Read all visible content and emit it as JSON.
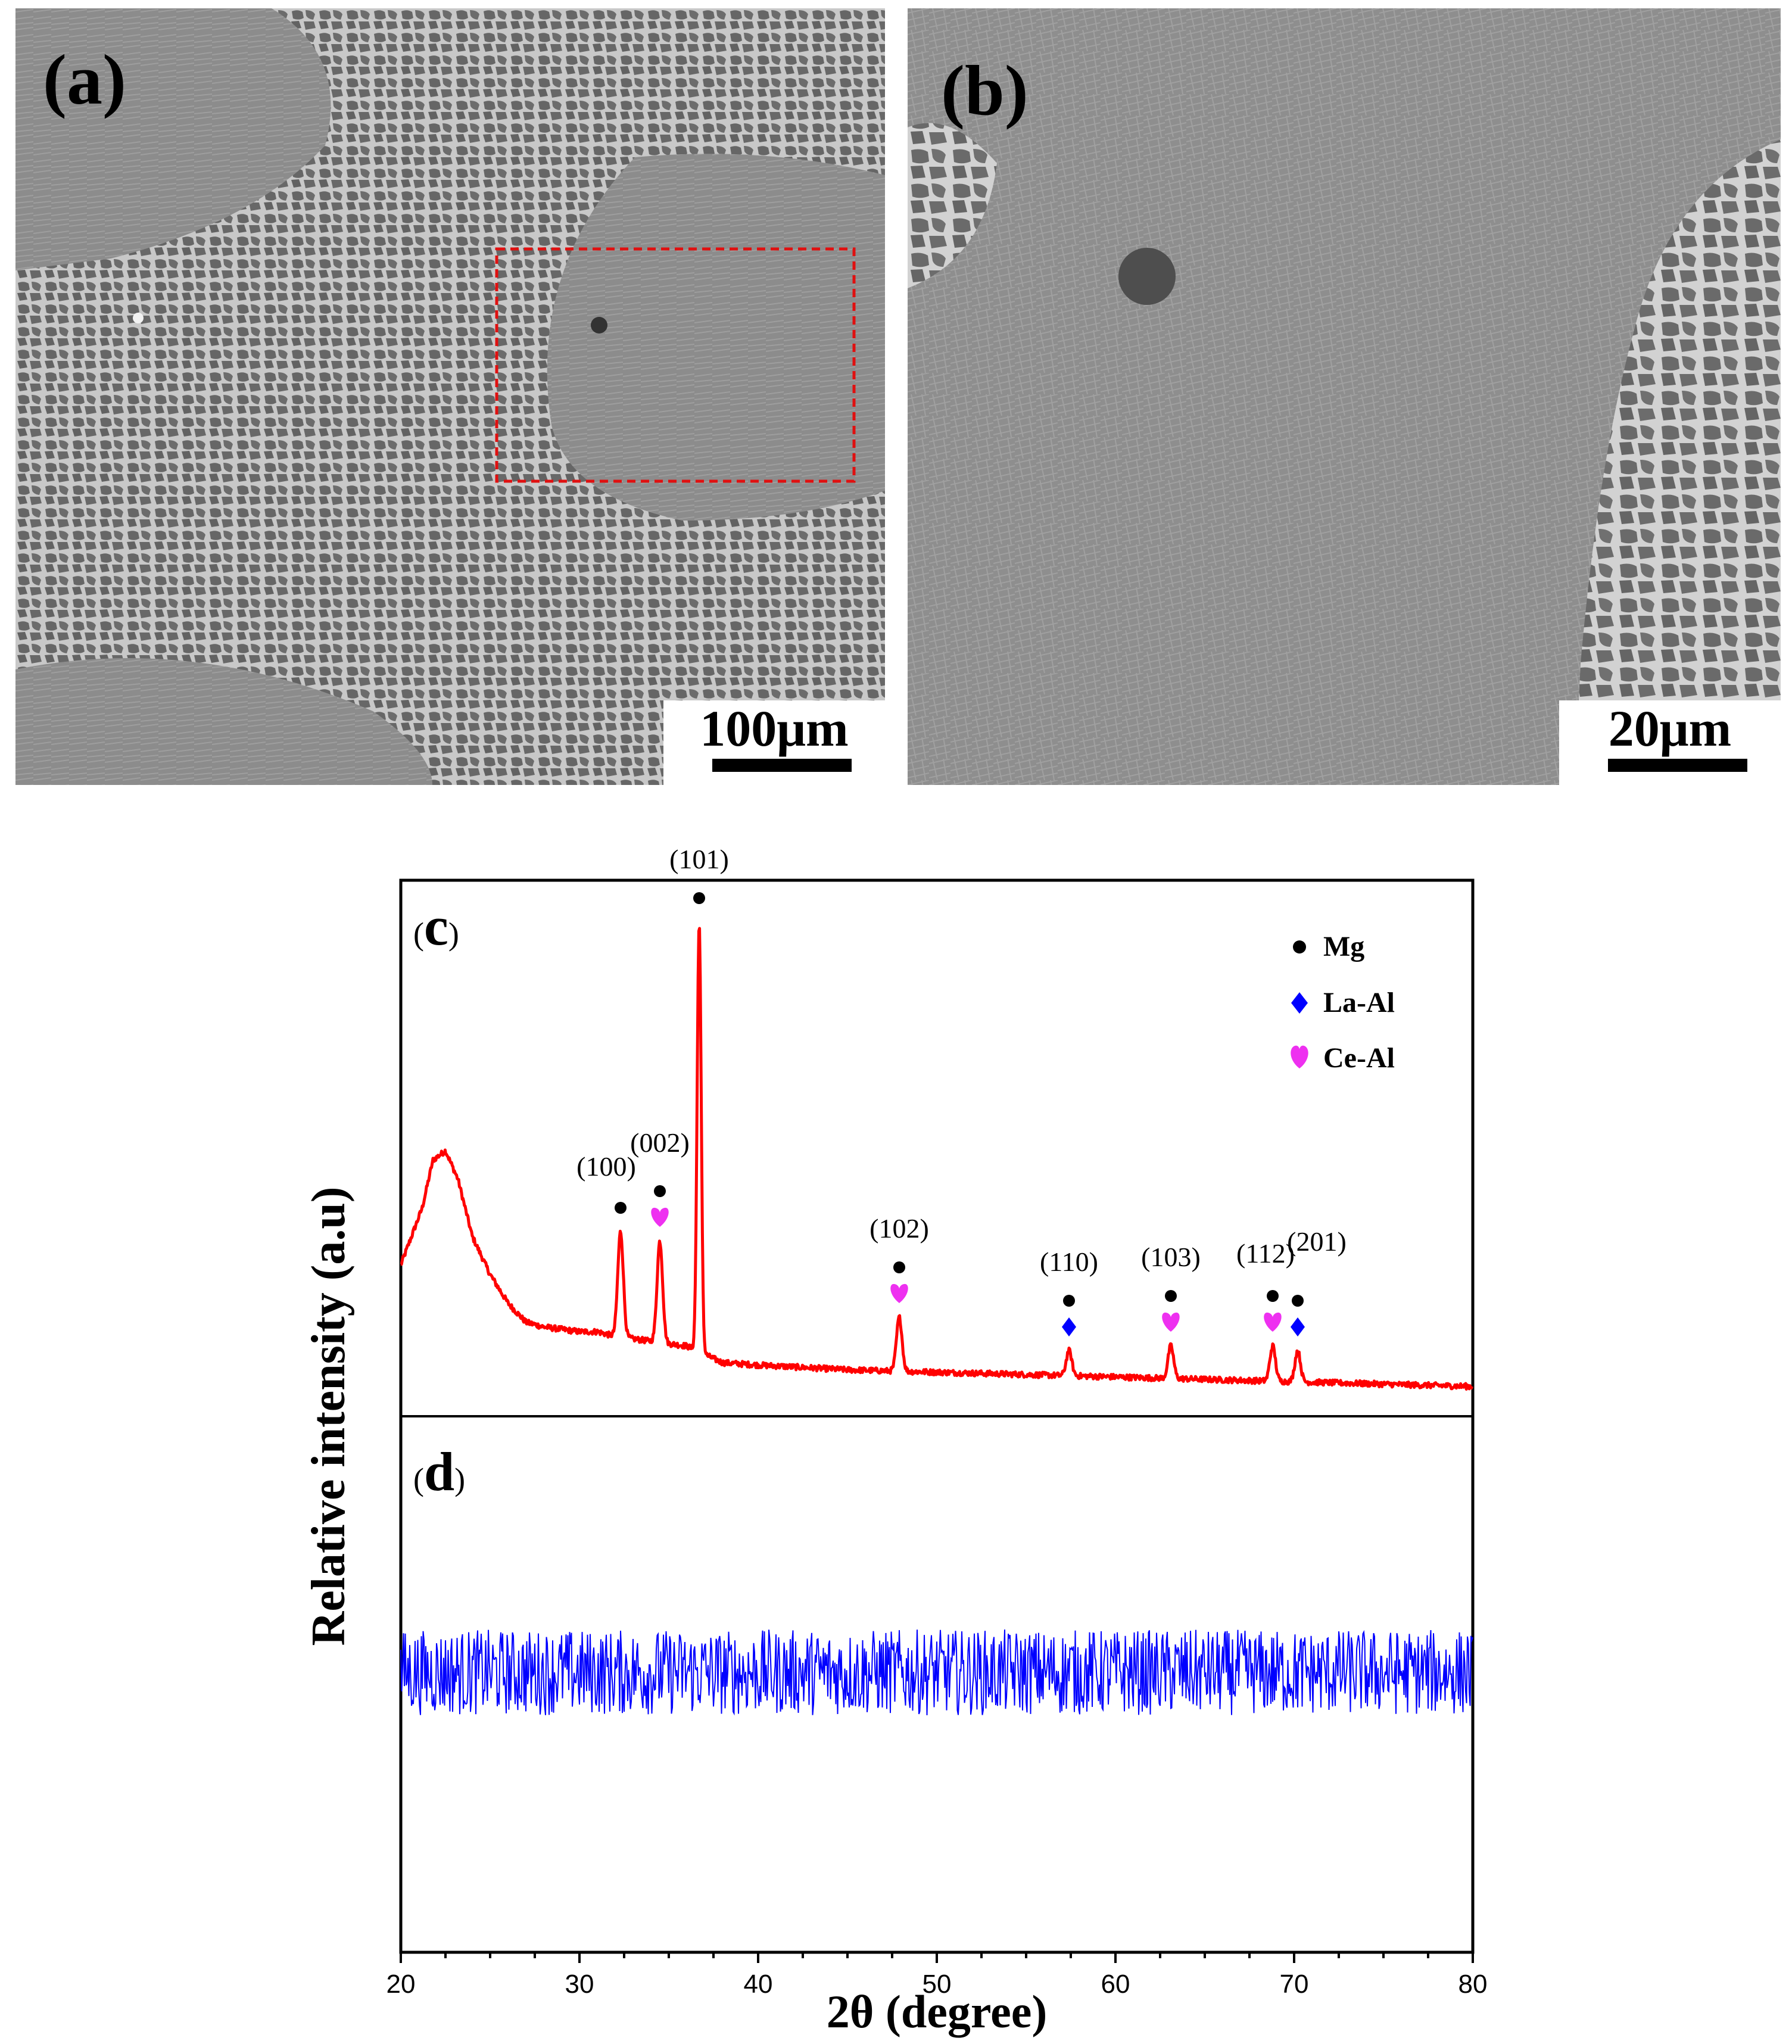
{
  "micrographs": [
    {
      "id": "a",
      "label": "(a)",
      "scale_label": "100μm",
      "has_inset_box": true
    },
    {
      "id": "b",
      "label": "(b)",
      "scale_label": "20μm",
      "has_inset_box": false
    }
  ],
  "colors": {
    "inset_box": "#e01010",
    "series_c": "#ff0000",
    "series_d": "#0000ff",
    "mg_marker": "#000000",
    "la_al_marker": "#0000ff",
    "ce_al_marker": "#ee30f0"
  },
  "chart_data": {
    "type": "line",
    "xlabel": "2θ (degree)",
    "ylabel": "Relative intensity (a.u)",
    "xlim": [
      20,
      80
    ],
    "xticks": [
      20,
      30,
      40,
      50,
      60,
      70,
      80
    ],
    "y_ticks_shown": false,
    "legend": {
      "placement": "top-right of panel (c)",
      "entries": [
        {
          "label": "Mg",
          "marker": "circle"
        },
        {
          "label": "La-Al",
          "marker": "diamond"
        },
        {
          "label": "Ce-Al",
          "marker": "heart"
        }
      ]
    },
    "panels": [
      {
        "label_open": "(",
        "label_letter": "c",
        "label_close": ")",
        "series": [
          {
            "style": "red line",
            "baseline": [
              [
                20,
                0.28
              ],
              [
                20.5,
                0.33
              ],
              [
                21.2,
                0.4
              ],
              [
                21.8,
                0.5
              ],
              [
                22.5,
                0.52
              ],
              [
                23.2,
                0.46
              ],
              [
                24,
                0.34
              ],
              [
                25,
                0.26
              ],
              [
                26,
                0.2
              ],
              [
                27,
                0.16
              ],
              [
                28,
                0.15
              ],
              [
                29,
                0.145
              ],
              [
                30,
                0.14
              ],
              [
                31,
                0.14
              ],
              [
                32,
                0.13
              ],
              [
                34,
                0.12
              ],
              [
                36,
                0.11
              ],
              [
                38,
                0.075
              ],
              [
                40,
                0.07
              ],
              [
                45,
                0.06
              ],
              [
                50,
                0.055
              ],
              [
                55,
                0.05
              ],
              [
                60,
                0.045
              ],
              [
                65,
                0.04
              ],
              [
                70,
                0.035
              ],
              [
                75,
                0.03
              ],
              [
                80,
                0.025
              ]
            ],
            "peaks": [
              {
                "two_theta": 32.3,
                "intensity": 0.35,
                "hkl": "(100)",
                "phases": [
                  "Mg"
                ]
              },
              {
                "two_theta": 34.5,
                "intensity": 0.33,
                "hkl": "(002)",
                "phases": [
                  "Mg",
                  "Ce-Al"
                ]
              },
              {
                "two_theta": 36.7,
                "intensity": 1.0,
                "hkl": "(101)",
                "phases": [
                  "Mg"
                ]
              },
              {
                "two_theta": 47.9,
                "intensity": 0.17,
                "hkl": "(102)",
                "phases": [
                  "Mg",
                  "Ce-Al"
                ]
              },
              {
                "two_theta": 57.4,
                "intensity": 0.1,
                "hkl": "(110)",
                "phases": [
                  "Mg",
                  "La-Al"
                ]
              },
              {
                "two_theta": 63.1,
                "intensity": 0.11,
                "hkl": "(103)",
                "phases": [
                  "Mg",
                  "Ce-Al"
                ]
              },
              {
                "two_theta": 68.8,
                "intensity": 0.11,
                "hkl": "(112)",
                "phases": [
                  "Mg",
                  "Ce-Al"
                ]
              },
              {
                "two_theta": 70.2,
                "intensity": 0.1,
                "hkl": "(201)",
                "phases": [
                  "Mg",
                  "La-Al"
                ]
              }
            ]
          }
        ]
      },
      {
        "label_open": "(",
        "label_letter": "d",
        "label_close": ")",
        "series": [
          {
            "style": "blue noisy line",
            "mean_level": 0.55,
            "noise_amplitude": 0.09,
            "peaks": []
          }
        ]
      }
    ]
  }
}
